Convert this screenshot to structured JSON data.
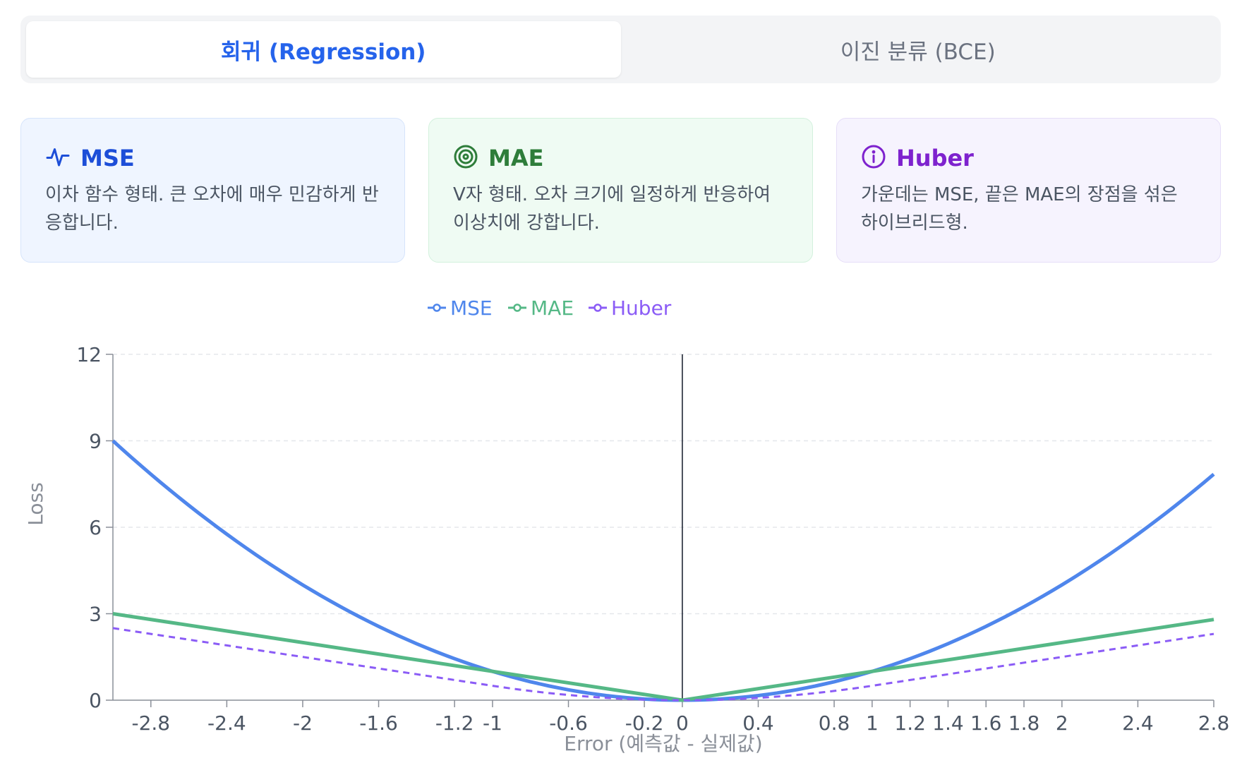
{
  "tabs": [
    {
      "label": "회귀 (Regression)",
      "active": true
    },
    {
      "label": "이진 분류 (BCE)",
      "active": false
    }
  ],
  "cards": [
    {
      "title": "MSE",
      "icon": "pulse-icon",
      "desc": "이차 함수 형태. 큰 오차에 매우 민감하게 반응합니다."
    },
    {
      "title": "MAE",
      "icon": "target-icon",
      "desc": "V자 형태. 오차 크기에 일정하게 반응하여 이상치에 강합니다."
    },
    {
      "title": "Huber",
      "icon": "info-icon",
      "desc": "가운데는 MSE, 끝은 MAE의 장점을 섞은 하이브리드형."
    }
  ],
  "colors": {
    "mse": "#4f86ec",
    "mae": "#55b886",
    "huber": "#8b5cf6",
    "accent": "#2563eb"
  },
  "chart_data": {
    "type": "line",
    "xlabel": "Error (예측값 - 실제값)",
    "ylabel": "Loss",
    "xlim": [
      -3,
      2.8
    ],
    "ylim": [
      0,
      12
    ],
    "yticks": [
      0,
      3,
      6,
      9,
      12
    ],
    "xticks": [
      "-2.8",
      "-2.4",
      "-2",
      "-1.6",
      "-1.2",
      "-1",
      "-0.6",
      "-0.2",
      "0",
      "0.4",
      "0.8",
      "1",
      "1.2",
      "1.4",
      "1.6",
      "1.8",
      "2",
      "2.4",
      "2.8"
    ],
    "legend_position": "top-center",
    "grid": "horizontal-dashed",
    "series": [
      {
        "name": "MSE",
        "style": "solid",
        "x": [
          -3,
          -2.5,
          -2,
          -1.5,
          -1,
          -0.5,
          0,
          0.5,
          1,
          1.5,
          2,
          2.5,
          2.8
        ],
        "y": [
          9,
          6.25,
          4,
          2.25,
          1,
          0.25,
          0,
          0.25,
          1,
          2.25,
          4,
          6.25,
          7.84
        ]
      },
      {
        "name": "MAE",
        "style": "solid",
        "x": [
          -3,
          0,
          2.8
        ],
        "y": [
          3,
          0,
          2.8
        ]
      },
      {
        "name": "Huber",
        "style": "dashed",
        "x": [
          -3,
          -1,
          -0.5,
          0,
          0.5,
          1,
          2.8
        ],
        "y": [
          2.5,
          0.5,
          0.125,
          0,
          0.125,
          0.5,
          2.3
        ]
      }
    ]
  }
}
